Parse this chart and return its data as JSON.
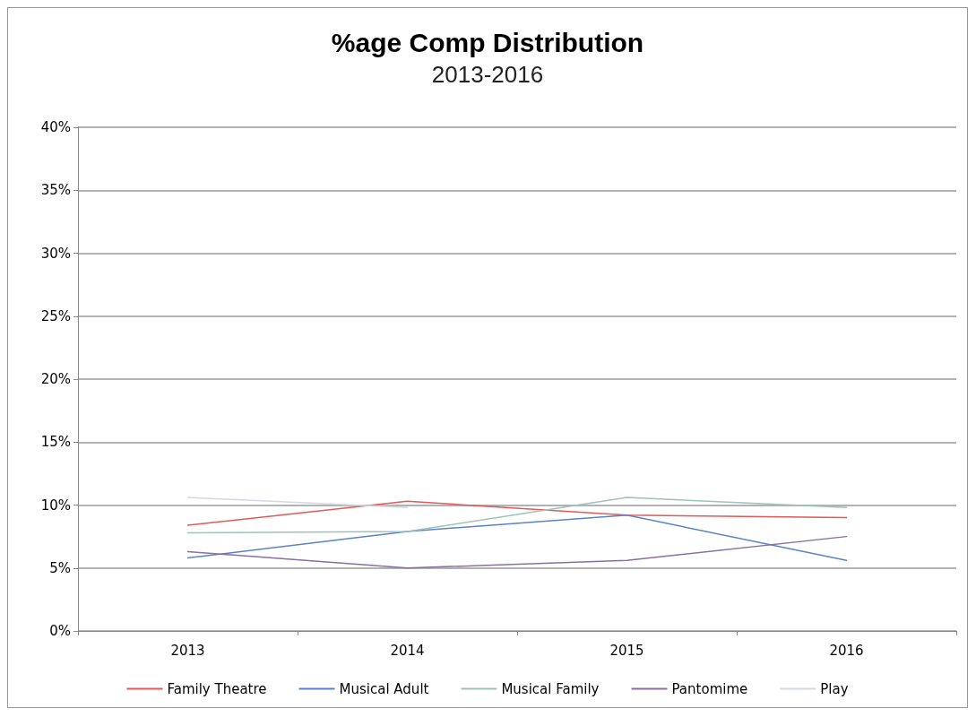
{
  "chart_data": {
    "type": "line",
    "title": "%age Comp Distribution",
    "subtitle": "2013-2016",
    "categories": [
      "2013",
      "2014",
      "2015",
      "2016"
    ],
    "series": [
      {
        "name": "Family Theatre",
        "color": "#e05a5a",
        "values": [
          8.4,
          10.3,
          9.2,
          9.0
        ]
      },
      {
        "name": "Musical Adult",
        "color": "#5b82c8",
        "values": [
          5.8,
          7.9,
          9.2,
          5.6
        ]
      },
      {
        "name": "Musical Family",
        "color": "#9dc3bb",
        "values": [
          7.8,
          7.9,
          10.6,
          9.8
        ]
      },
      {
        "name": "Pantomime",
        "color": "#8a6fa0",
        "values": [
          6.3,
          5.0,
          5.6,
          7.5
        ]
      },
      {
        "name": "Play",
        "color": "#d4d8e0",
        "values": [
          10.6,
          9.8,
          null,
          null
        ]
      }
    ],
    "ylim": [
      0,
      40
    ],
    "yticks": [
      {
        "value": 0,
        "label": "0%"
      },
      {
        "value": 5,
        "label": "5%"
      },
      {
        "value": 10,
        "label": "10%"
      },
      {
        "value": 15,
        "label": "15%"
      },
      {
        "value": 20,
        "label": "20%"
      },
      {
        "value": 25,
        "label": "25%"
      },
      {
        "value": 30,
        "label": "30%"
      },
      {
        "value": 35,
        "label": "35%"
      },
      {
        "value": 40,
        "label": "40%"
      }
    ],
    "grid": "y",
    "legend": "bottom",
    "marker": "none",
    "line_style": "solid"
  }
}
